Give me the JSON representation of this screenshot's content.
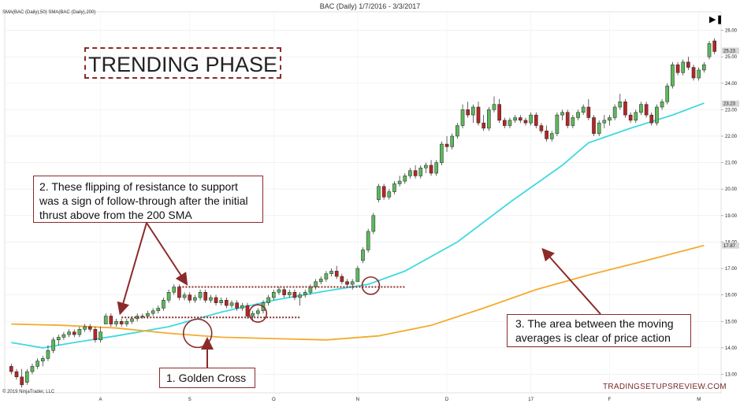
{
  "header": {
    "title": "BAC (Daily)  1/7/2016 - 3/3/2017",
    "indicators": "SMA(BAC (Daily),50)  SMA(BAC (Daily),200)"
  },
  "footer": {
    "copyright": "© 2019 NinjaTrader, LLC",
    "watermark": "TRADINGSETUPSREVIEW.COM"
  },
  "annotations": {
    "trend_label": "TRENDING PHASE",
    "note1": "1. Golden Cross",
    "note2": "2. These flipping of resistance to support was a sign of follow-through after the initial thrust above from the 200 SMA",
    "note3": "3. The area between the moving averages is clear of price action"
  },
  "icons": {
    "play_end": "skip-to-end-icon"
  },
  "colors": {
    "up_candle": "#5cb85c",
    "down_candle": "#b52626",
    "sma50": "#40d9e0",
    "sma200": "#f3ab2e",
    "annotation": "#8b2a2a"
  },
  "chart_data": {
    "type": "candlestick",
    "title": "BAC (Daily)  1/7/2016 - 3/3/2017",
    "ylim": [
      12.3,
      26.7
    ],
    "yticks": [
      "13.00",
      "14.00",
      "15.00",
      "16.00",
      "17.00",
      "18.00",
      "19.00",
      "20.00",
      "21.00",
      "22.00",
      "23.00",
      "24.00",
      "25.00",
      "26.00"
    ],
    "price_labels": [
      {
        "value": "25.23",
        "y": 25.23
      },
      {
        "value": "23.23",
        "y": 23.23
      },
      {
        "value": "17.87",
        "y": 17.87
      }
    ],
    "xticks": [
      {
        "label": "A",
        "i": 17
      },
      {
        "label": "S",
        "i": 34
      },
      {
        "label": "O",
        "i": 50
      },
      {
        "label": "N",
        "i": 66
      },
      {
        "label": "D",
        "i": 83
      },
      {
        "label": "17",
        "i": 99
      },
      {
        "label": "F",
        "i": 114
      },
      {
        "label": "M",
        "i": 131
      }
    ],
    "series": [
      {
        "name": "SMA(BAC (Daily),50)",
        "color": "#40d9e0",
        "points": [
          [
            0,
            14.2
          ],
          [
            6,
            14.0
          ],
          [
            12,
            14.2
          ],
          [
            20,
            14.45
          ],
          [
            30,
            14.8
          ],
          [
            40,
            15.35
          ],
          [
            50,
            15.8
          ],
          [
            60,
            16.15
          ],
          [
            68,
            16.4
          ],
          [
            75,
            16.9
          ],
          [
            85,
            18.0
          ],
          [
            95,
            19.5
          ],
          [
            105,
            20.9
          ],
          [
            110,
            21.75
          ],
          [
            118,
            22.3
          ],
          [
            126,
            22.8
          ],
          [
            132,
            23.25
          ]
        ]
      },
      {
        "name": "SMA(BAC (Daily),200)",
        "color": "#f3ab2e",
        "points": [
          [
            0,
            14.9
          ],
          [
            10,
            14.85
          ],
          [
            20,
            14.75
          ],
          [
            30,
            14.55
          ],
          [
            40,
            14.4
          ],
          [
            50,
            14.35
          ],
          [
            60,
            14.3
          ],
          [
            70,
            14.45
          ],
          [
            80,
            14.85
          ],
          [
            90,
            15.5
          ],
          [
            100,
            16.2
          ],
          [
            110,
            16.75
          ],
          [
            120,
            17.25
          ],
          [
            132,
            17.87
          ]
        ]
      }
    ],
    "candles": [
      [
        13.3,
        13.4,
        13.0,
        13.1
      ],
      [
        13.1,
        13.2,
        12.8,
        12.9
      ],
      [
        12.9,
        13.2,
        12.5,
        12.6
      ],
      [
        12.7,
        13.2,
        12.6,
        13.1
      ],
      [
        13.1,
        13.4,
        13.0,
        13.3
      ],
      [
        13.3,
        13.6,
        13.2,
        13.5
      ],
      [
        13.5,
        13.7,
        13.3,
        13.6
      ],
      [
        13.6,
        14.1,
        13.5,
        13.9
      ],
      [
        13.9,
        14.4,
        13.8,
        14.3
      ],
      [
        14.3,
        14.5,
        14.1,
        14.4
      ],
      [
        14.4,
        14.6,
        14.3,
        14.5
      ],
      [
        14.5,
        14.7,
        14.4,
        14.6
      ],
      [
        14.6,
        14.7,
        14.4,
        14.5
      ],
      [
        14.5,
        14.8,
        14.4,
        14.7
      ],
      [
        14.7,
        14.9,
        14.6,
        14.8
      ],
      [
        14.8,
        14.9,
        14.6,
        14.7
      ],
      [
        14.7,
        14.8,
        14.2,
        14.3
      ],
      [
        14.3,
        14.8,
        14.2,
        14.6
      ],
      [
        14.9,
        15.3,
        14.9,
        15.2
      ],
      [
        15.2,
        15.3,
        14.8,
        14.9
      ],
      [
        14.9,
        15.1,
        14.8,
        15.0
      ],
      [
        15.0,
        15.1,
        14.8,
        14.9
      ],
      [
        14.9,
        15.1,
        14.8,
        15.0
      ],
      [
        15.0,
        15.2,
        14.9,
        15.1
      ],
      [
        15.1,
        15.3,
        15.0,
        15.2
      ],
      [
        15.2,
        15.3,
        15.1,
        15.2
      ],
      [
        15.2,
        15.4,
        15.1,
        15.3
      ],
      [
        15.3,
        15.5,
        15.2,
        15.4
      ],
      [
        15.4,
        15.6,
        15.3,
        15.5
      ],
      [
        15.5,
        15.9,
        15.4,
        15.8
      ],
      [
        15.8,
        16.2,
        15.7,
        16.1
      ],
      [
        16.1,
        16.4,
        16.0,
        16.3
      ],
      [
        16.3,
        16.4,
        15.8,
        15.9
      ],
      [
        15.9,
        16.1,
        15.8,
        16.0
      ],
      [
        16.0,
        16.1,
        15.7,
        15.8
      ],
      [
        15.8,
        16.0,
        15.7,
        15.9
      ],
      [
        15.9,
        16.2,
        15.8,
        16.1
      ],
      [
        16.1,
        16.2,
        15.7,
        15.8
      ],
      [
        15.8,
        16.0,
        15.7,
        15.9
      ],
      [
        15.9,
        16.0,
        15.6,
        15.7
      ],
      [
        15.7,
        15.9,
        15.6,
        15.8
      ],
      [
        15.8,
        15.9,
        15.5,
        15.6
      ],
      [
        15.6,
        15.8,
        15.5,
        15.7
      ],
      [
        15.7,
        15.8,
        15.4,
        15.5
      ],
      [
        15.5,
        15.7,
        15.4,
        15.6
      ],
      [
        15.6,
        15.7,
        15.1,
        15.2
      ],
      [
        15.2,
        15.4,
        15.0,
        15.3
      ],
      [
        15.3,
        15.5,
        15.2,
        15.4
      ],
      [
        15.4,
        15.8,
        15.3,
        15.7
      ],
      [
        15.7,
        16.0,
        15.6,
        15.9
      ],
      [
        15.9,
        16.2,
        15.8,
        16.1
      ],
      [
        16.1,
        16.3,
        16.0,
        16.2
      ],
      [
        16.2,
        16.3,
        15.9,
        16.0
      ],
      [
        16.0,
        16.2,
        15.9,
        16.1
      ],
      [
        16.1,
        16.2,
        15.8,
        15.9
      ],
      [
        15.9,
        16.1,
        15.6,
        16.0
      ],
      [
        16.0,
        16.2,
        15.9,
        16.1
      ],
      [
        16.1,
        16.4,
        16.0,
        16.3
      ],
      [
        16.3,
        16.6,
        16.2,
        16.5
      ],
      [
        16.5,
        16.7,
        16.4,
        16.6
      ],
      [
        16.6,
        16.9,
        16.5,
        16.8
      ],
      [
        16.8,
        17.0,
        16.7,
        16.9
      ],
      [
        16.9,
        17.1,
        16.6,
        16.7
      ],
      [
        16.7,
        16.8,
        16.4,
        16.5
      ],
      [
        16.5,
        16.6,
        16.3,
        16.4
      ],
      [
        16.4,
        16.6,
        16.2,
        16.5
      ],
      [
        16.5,
        17.1,
        16.5,
        17.0
      ],
      [
        17.3,
        17.8,
        17.2,
        17.7
      ],
      [
        17.7,
        18.5,
        17.6,
        18.4
      ],
      [
        18.4,
        19.1,
        18.3,
        19.0
      ],
      [
        19.6,
        20.2,
        19.5,
        20.1
      ],
      [
        20.1,
        20.2,
        19.6,
        19.7
      ],
      [
        19.7,
        20.0,
        19.6,
        19.9
      ],
      [
        19.9,
        20.3,
        19.8,
        20.2
      ],
      [
        20.2,
        20.5,
        20.1,
        20.3
      ],
      [
        20.3,
        20.6,
        20.2,
        20.5
      ],
      [
        20.5,
        20.8,
        20.4,
        20.7
      ],
      [
        20.7,
        20.9,
        20.4,
        20.5
      ],
      [
        20.5,
        20.9,
        20.4,
        20.8
      ],
      [
        20.8,
        21.0,
        20.6,
        20.9
      ],
      [
        20.9,
        21.1,
        20.5,
        20.6
      ],
      [
        20.6,
        21.1,
        20.5,
        21.0
      ],
      [
        21.0,
        21.8,
        20.9,
        21.7
      ],
      [
        21.7,
        22.0,
        21.4,
        21.6
      ],
      [
        21.6,
        22.1,
        21.5,
        22.0
      ],
      [
        22.0,
        22.5,
        21.9,
        22.4
      ],
      [
        22.4,
        23.2,
        22.3,
        23.0
      ],
      [
        23.0,
        23.3,
        22.7,
        22.8
      ],
      [
        22.8,
        23.2,
        22.5,
        23.1
      ],
      [
        23.1,
        23.3,
        22.4,
        22.5
      ],
      [
        22.5,
        22.8,
        22.2,
        22.3
      ],
      [
        22.3,
        23.1,
        22.2,
        23.0
      ],
      [
        23.0,
        23.5,
        22.9,
        23.2
      ],
      [
        23.2,
        23.4,
        22.5,
        22.6
      ],
      [
        22.6,
        22.7,
        22.3,
        22.4
      ],
      [
        22.4,
        22.7,
        22.3,
        22.6
      ],
      [
        22.6,
        22.8,
        22.5,
        22.7
      ],
      [
        22.7,
        22.8,
        22.5,
        22.6
      ],
      [
        22.6,
        22.7,
        22.4,
        22.5
      ],
      [
        22.5,
        22.9,
        22.4,
        22.8
      ],
      [
        22.8,
        22.9,
        22.3,
        22.4
      ],
      [
        22.4,
        22.5,
        22.1,
        22.2
      ],
      [
        22.2,
        22.4,
        21.8,
        21.9
      ],
      [
        21.9,
        22.2,
        21.8,
        22.1
      ],
      [
        22.1,
        22.9,
        22.0,
        22.8
      ],
      [
        22.8,
        23.0,
        22.6,
        22.9
      ],
      [
        22.9,
        23.0,
        22.3,
        22.4
      ],
      [
        22.4,
        22.8,
        22.3,
        22.7
      ],
      [
        22.7,
        23.0,
        22.6,
        22.9
      ],
      [
        22.9,
        23.2,
        22.8,
        23.1
      ],
      [
        23.1,
        23.4,
        22.6,
        22.7
      ],
      [
        22.7,
        22.8,
        22.0,
        22.1
      ],
      [
        22.1,
        22.6,
        22.0,
        22.5
      ],
      [
        22.5,
        22.8,
        22.3,
        22.6
      ],
      [
        22.6,
        22.8,
        22.4,
        22.7
      ],
      [
        22.7,
        23.2,
        22.6,
        23.1
      ],
      [
        23.1,
        23.6,
        23.0,
        23.3
      ],
      [
        23.3,
        23.4,
        22.7,
        22.8
      ],
      [
        22.8,
        22.9,
        22.5,
        22.6
      ],
      [
        22.6,
        23.0,
        22.5,
        22.9
      ],
      [
        22.9,
        23.3,
        22.8,
        23.2
      ],
      [
        23.2,
        23.3,
        22.7,
        22.8
      ],
      [
        22.8,
        22.9,
        22.4,
        22.5
      ],
      [
        22.5,
        23.2,
        22.4,
        23.1
      ],
      [
        23.1,
        23.4,
        23.0,
        23.3
      ],
      [
        23.3,
        24.0,
        23.2,
        23.9
      ],
      [
        23.9,
        24.8,
        23.8,
        24.7
      ],
      [
        24.7,
        24.8,
        24.3,
        24.4
      ],
      [
        24.4,
        24.9,
        24.3,
        24.8
      ],
      [
        24.8,
        25.0,
        24.5,
        24.6
      ],
      [
        24.6,
        24.7,
        24.1,
        24.2
      ],
      [
        24.2,
        24.6,
        24.1,
        24.5
      ],
      [
        24.5,
        24.8,
        24.4,
        24.7
      ],
      [
        25.0,
        25.6,
        24.9,
        25.5
      ],
      [
        25.6,
        25.7,
        25.1,
        25.2
      ]
    ]
  }
}
